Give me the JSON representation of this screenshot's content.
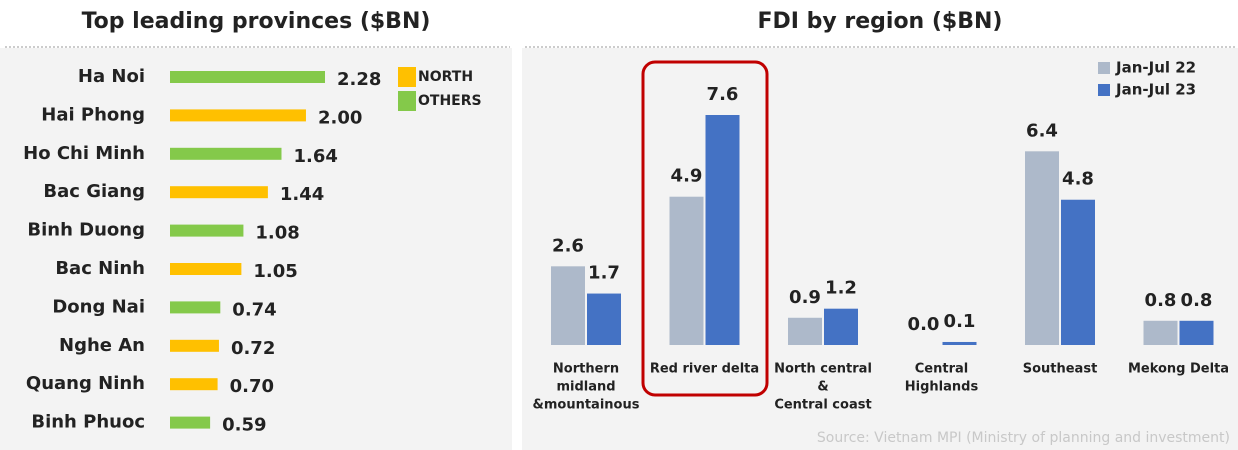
{
  "chart_data": [
    {
      "type": "hbar",
      "title": "Top leading provinces ($BN)",
      "categories": [
        "Ha Noi",
        "Hai Phong",
        "Ho Chi Minh",
        "Bac Giang",
        "Binh Duong",
        "Bac Ninh",
        "Dong Nai",
        "Nghe An",
        "Quang Ninh",
        "Binh Phuoc"
      ],
      "values": [
        2.28,
        2.0,
        1.64,
        1.44,
        1.08,
        1.05,
        0.74,
        0.72,
        0.7,
        0.59
      ],
      "value_labels": [
        "2.28",
        "2.00",
        "1.64",
        "1.44",
        "1.08",
        "1.05",
        "0.74",
        "0.72",
        "0.70",
        "0.59"
      ],
      "colors": [
        "#84c94a",
        "#ffc000",
        "#84c94a",
        "#ffc000",
        "#84c94a",
        "#ffc000",
        "#84c94a",
        "#ffc000",
        "#ffc000",
        "#84c94a"
      ],
      "legend": [
        {
          "name": "NORTH",
          "color": "#ffc000"
        },
        {
          "name": "OTHERS",
          "color": "#84c94a"
        }
      ]
    },
    {
      "type": "grouped_bar",
      "title": "FDI by region ($BN)",
      "categories": [
        [
          "Northern",
          "midland",
          "&mountainous"
        ],
        [
          "Red river delta"
        ],
        [
          "North central",
          "&",
          "Central coast"
        ],
        [
          "Central",
          "Highlands"
        ],
        [
          "Southeast"
        ],
        [
          "Mekong Delta"
        ]
      ],
      "series": [
        {
          "name": "Jan-Jul 22",
          "color": "#adb9ca",
          "values": [
            2.6,
            4.9,
            0.9,
            0.0,
            6.4,
            0.8
          ],
          "value_labels": [
            "2.6",
            "4.9",
            "0.9",
            "0.0",
            "6.4",
            "0.8"
          ]
        },
        {
          "name": "Jan-Jul 23",
          "color": "#4472c4",
          "values": [
            1.7,
            7.6,
            1.2,
            0.1,
            4.8,
            0.8
          ],
          "value_labels": [
            "1.7",
            "7.6",
            "1.2",
            "0.1",
            "4.8",
            "0.8"
          ]
        }
      ],
      "source": "Source: Vietnam MPI (Ministry of planning and investment)"
    }
  ]
}
